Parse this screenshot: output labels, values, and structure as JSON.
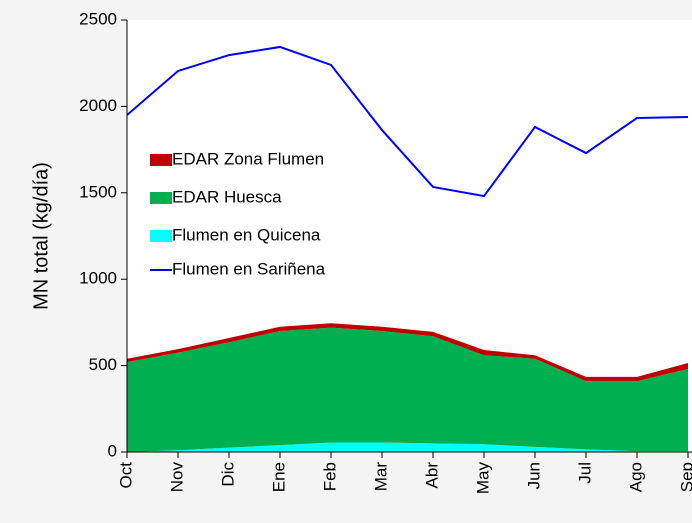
{
  "chart_data": {
    "type": "stacked_area_line",
    "y_label": "MN total (kg/día)",
    "categories": [
      "Oct",
      "Nov",
      "Dic",
      "Ene",
      "Feb",
      "Mar",
      "Abr",
      "May",
      "Jun",
      "Jul",
      "Ago",
      "Sep"
    ],
    "series": [
      {
        "name": "EDAR Zona Flumen",
        "type": "area",
        "color": "#c00000",
        "values": [
          20,
          20,
          25,
          25,
          25,
          25,
          25,
          30,
          20,
          25,
          25,
          35
        ]
      },
      {
        "name": "EDAR Huesca",
        "type": "area",
        "color": "#00b050",
        "values": [
          520,
          565,
          610,
          660,
          665,
          645,
          620,
          515,
          510,
          395,
          405,
          475
        ]
      },
      {
        "name": "Flumen en Quicena",
        "type": "area",
        "color": "#00ffff",
        "values": [
          0,
          10,
          25,
          40,
          55,
          55,
          50,
          45,
          30,
          15,
          5,
          5
        ]
      },
      {
        "name": "Flumen en Sariñena",
        "type": "line",
        "color": "#0000ff",
        "values": [
          1950,
          2205,
          2297,
          2344,
          2240,
          1863,
          1534,
          1481,
          1881,
          1730,
          1933,
          1939
        ]
      }
    ],
    "ylim": [
      0,
      2500
    ],
    "yticks": [
      0,
      500,
      1000,
      1500,
      2000,
      2500
    ],
    "grid": false
  }
}
